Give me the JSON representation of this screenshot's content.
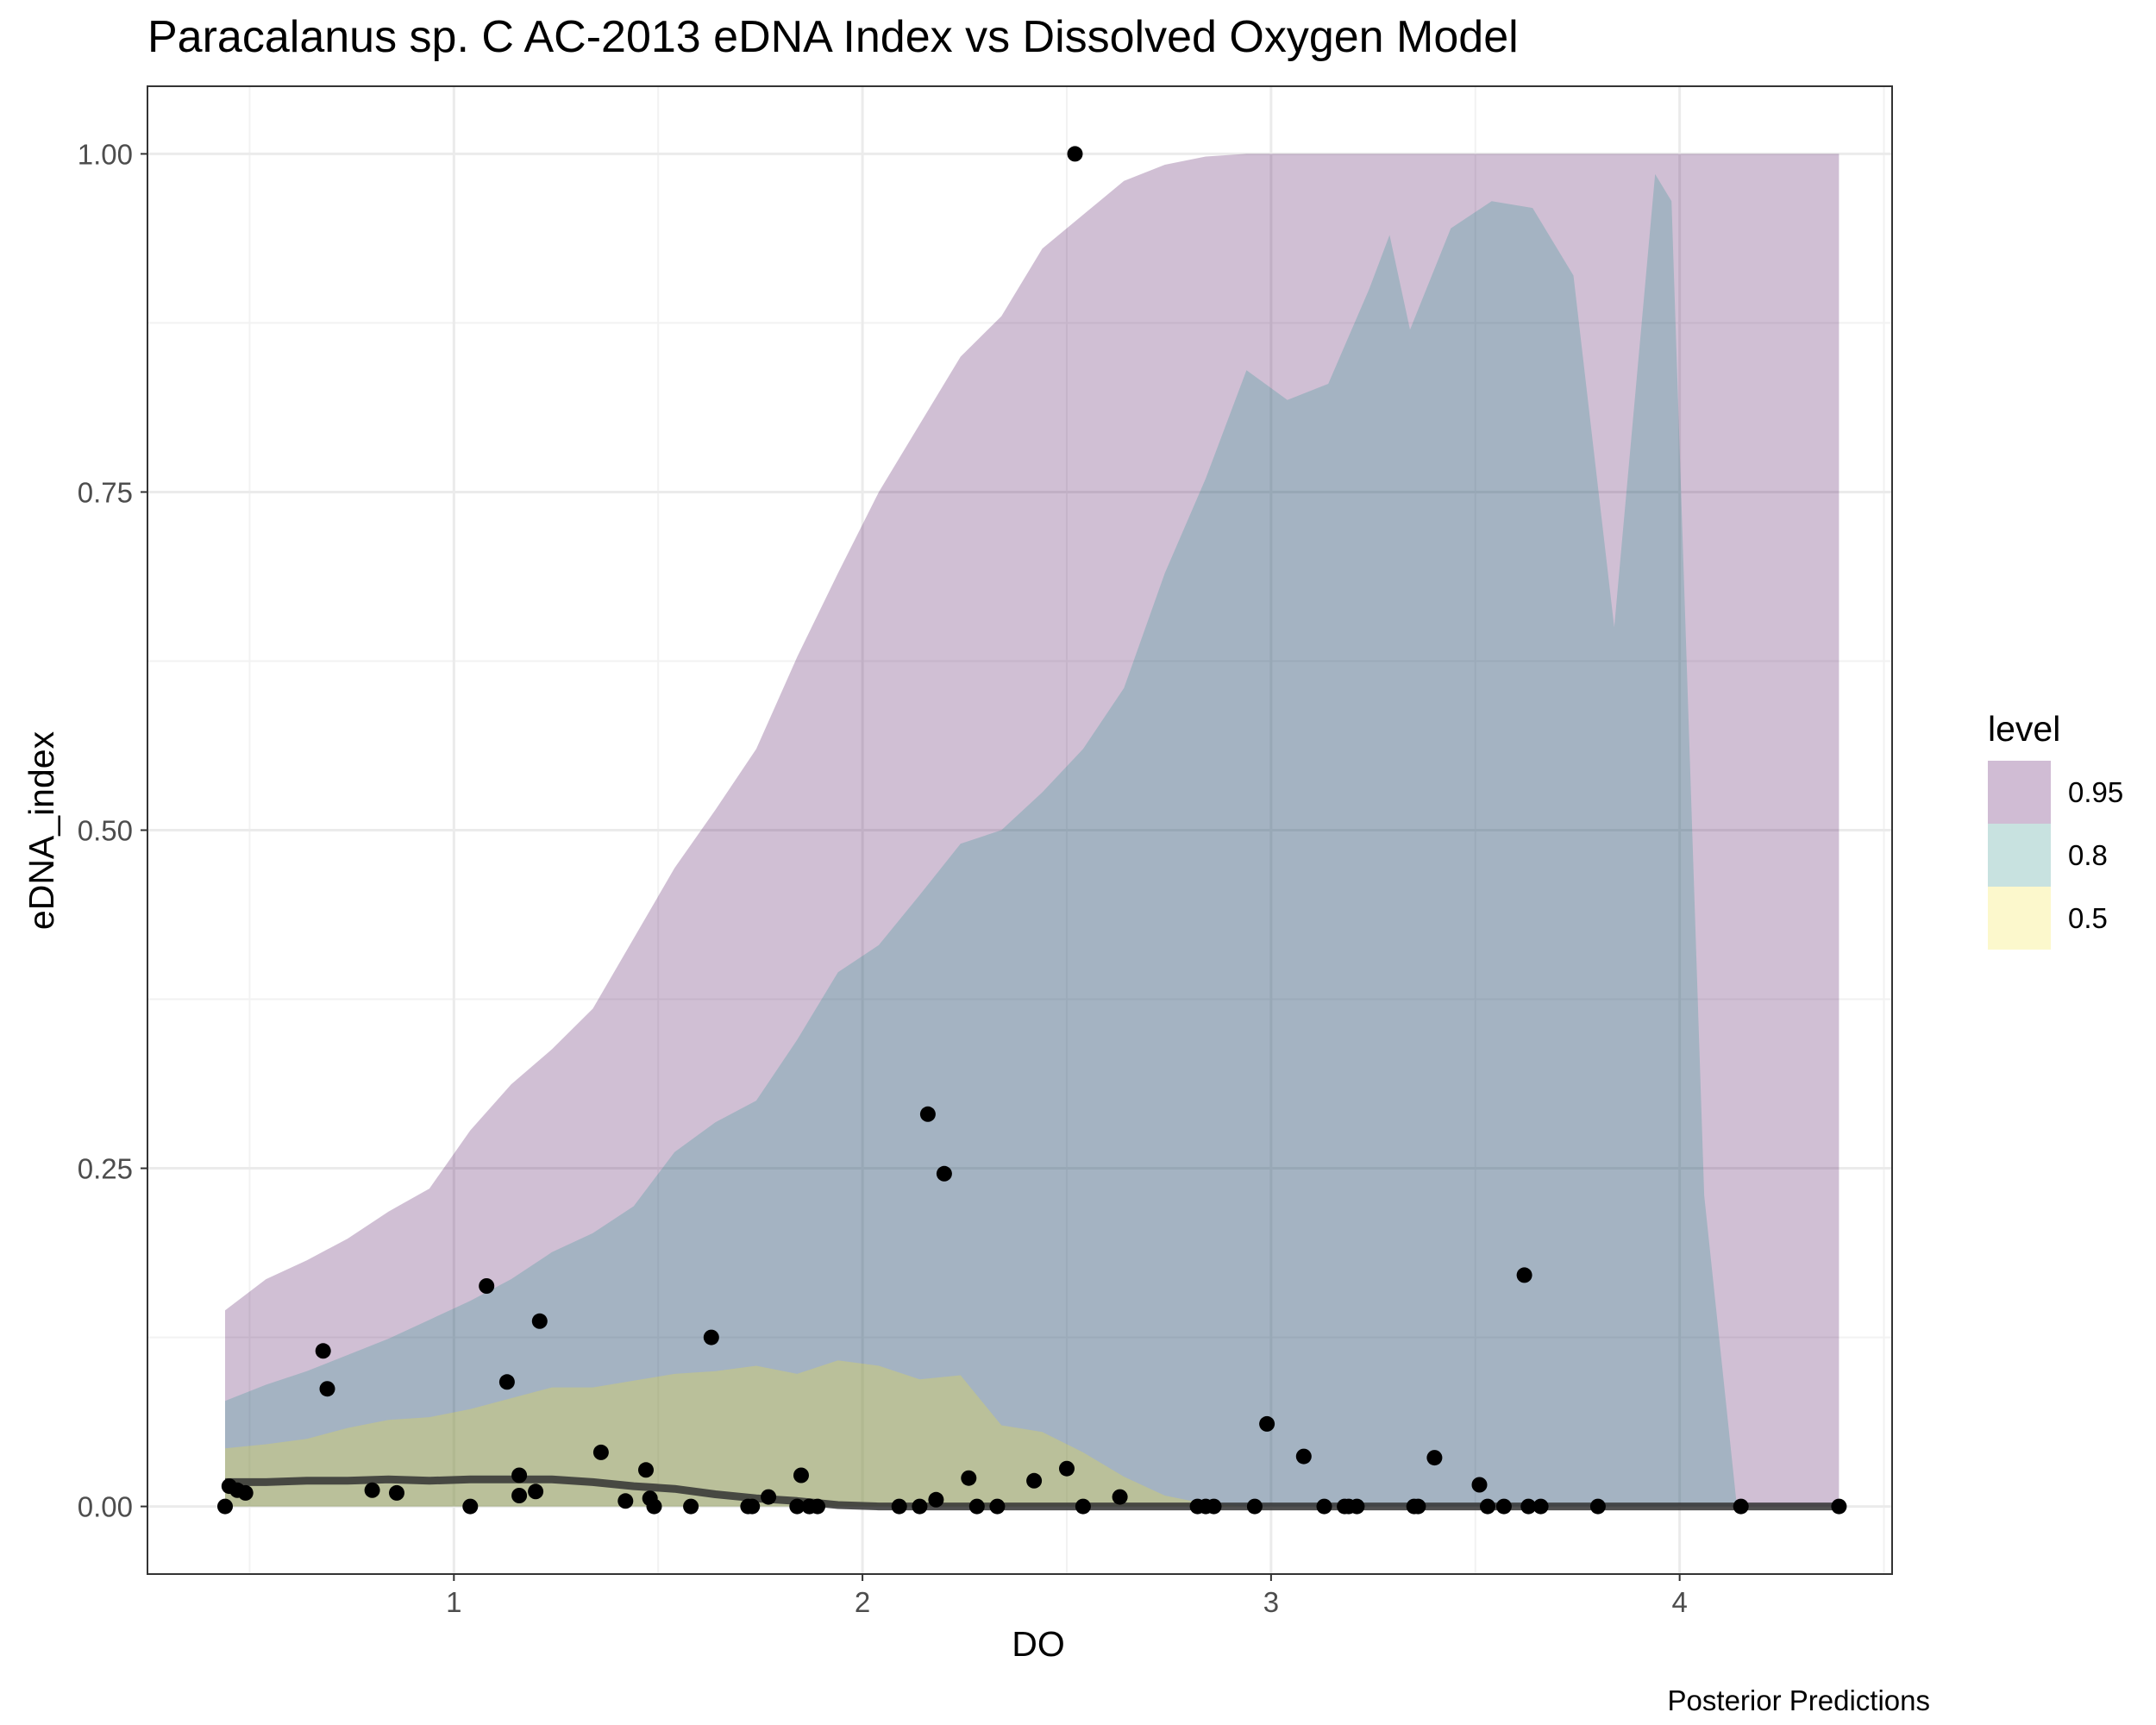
{
  "chart_data": {
    "type": "area",
    "title": "Paracalanus sp. C AC-2013 eDNA Index vs Dissolved Oxygen Model",
    "xlabel": "DO",
    "ylabel": "eDNA_index",
    "caption": "Posterior Predictions",
    "xlim": [
      0.25,
      4.52
    ],
    "ylim": [
      -0.05,
      1.05
    ],
    "x_ticks": [
      {
        "value": 1,
        "label": "1"
      },
      {
        "value": 2,
        "label": "2"
      },
      {
        "value": 3,
        "label": "3"
      },
      {
        "value": 4,
        "label": "4"
      }
    ],
    "y_ticks": [
      {
        "value": 0,
        "label": "0.00"
      },
      {
        "value": 0.25,
        "label": "0.25"
      },
      {
        "value": 0.5,
        "label": "0.50"
      },
      {
        "value": 0.75,
        "label": "0.75"
      },
      {
        "value": 1.0,
        "label": "1.00"
      }
    ],
    "grid": true,
    "legend": {
      "title": "level",
      "placement": "right",
      "items": [
        {
          "label": "0.95",
          "color": "#d0bcd4"
        },
        {
          "label": "0.8",
          "color": "#c8e2e0"
        },
        {
          "label": "0.5",
          "color": "#fcf8cc"
        }
      ]
    },
    "colors": {
      "band_95": "#440154",
      "band_80": "#21908c",
      "band_50": "#fde725",
      "median_line": "#333333",
      "points": "#000000"
    },
    "bands": [
      {
        "level": "0.95",
        "x": [
          0.44,
          0.54,
          0.64,
          0.74,
          0.84,
          0.94,
          1.04,
          1.14,
          1.24,
          1.34,
          1.44,
          1.54,
          1.64,
          1.74,
          1.84,
          1.94,
          2.04,
          2.14,
          2.24,
          2.34,
          2.44,
          2.54,
          2.64,
          2.74,
          2.84,
          2.94,
          3.04,
          3.14,
          3.24,
          3.34,
          3.44,
          3.54,
          3.64,
          3.74,
          3.84,
          3.94,
          4.04,
          4.14,
          4.24,
          4.34,
          4.39
        ],
        "upper": [
          0.145,
          0.168,
          0.182,
          0.198,
          0.218,
          0.235,
          0.278,
          0.312,
          0.338,
          0.368,
          0.42,
          0.472,
          0.515,
          0.56,
          0.628,
          0.69,
          0.75,
          0.8,
          0.85,
          0.88,
          0.93,
          0.955,
          0.98,
          0.992,
          0.998,
          1.0,
          1.0,
          1.0,
          1.0,
          1.0,
          1.0,
          1.0,
          1.0,
          1.0,
          1.0,
          1.0,
          1.0,
          1.0,
          1.0,
          1.0,
          1.0
        ],
        "lower": [
          0.0,
          0.0,
          0.0,
          0.0,
          0.0,
          0.0,
          0.0,
          0.0,
          0.0,
          0.0,
          0.0,
          0.0,
          0.0,
          0.0,
          0.0,
          0.0,
          0.0,
          0.0,
          0.0,
          0.0,
          0.0,
          0.0,
          0.0,
          0.0,
          0.0,
          0.0,
          0.0,
          0.0,
          0.0,
          0.0,
          0.0,
          0.0,
          0.0,
          0.0,
          0.0,
          0.0,
          0.0,
          0.0,
          0.0,
          0.0,
          0.0
        ]
      },
      {
        "level": "0.8",
        "x": [
          0.44,
          0.54,
          0.64,
          0.74,
          0.84,
          0.94,
          1.04,
          1.14,
          1.24,
          1.34,
          1.44,
          1.54,
          1.64,
          1.74,
          1.84,
          1.94,
          2.04,
          2.14,
          2.24,
          2.34,
          2.44,
          2.54,
          2.64,
          2.74,
          2.84,
          2.94,
          3.04,
          3.14,
          3.24,
          3.29,
          3.34,
          3.44,
          3.54,
          3.64,
          3.74,
          3.84,
          3.94,
          3.98,
          4.06,
          4.14
        ],
        "upper": [
          0.078,
          0.09,
          0.1,
          0.112,
          0.124,
          0.138,
          0.152,
          0.168,
          0.188,
          0.202,
          0.222,
          0.262,
          0.284,
          0.3,
          0.345,
          0.395,
          0.415,
          0.452,
          0.49,
          0.5,
          0.528,
          0.56,
          0.605,
          0.69,
          0.76,
          0.84,
          0.818,
          0.83,
          0.9,
          0.94,
          0.87,
          0.945,
          0.965,
          0.96,
          0.91,
          0.65,
          0.985,
          0.965,
          0.23,
          0.0
        ],
        "lower": [
          0.0,
          0.0,
          0.0,
          0.0,
          0.0,
          0.0,
          0.0,
          0.0,
          0.0,
          0.0,
          0.0,
          0.0,
          0.0,
          0.0,
          0.0,
          0.0,
          0.0,
          0.0,
          0.0,
          0.0,
          0.0,
          0.0,
          0.0,
          0.0,
          0.0,
          0.0,
          0.0,
          0.0,
          0.0,
          0.0,
          0.0,
          0.0,
          0.0,
          0.0,
          0.0,
          0.0,
          0.0,
          0.0,
          0.0,
          0.0
        ]
      },
      {
        "level": "0.5",
        "x": [
          0.44,
          0.54,
          0.64,
          0.74,
          0.84,
          0.94,
          1.04,
          1.14,
          1.24,
          1.34,
          1.44,
          1.54,
          1.64,
          1.74,
          1.84,
          1.94,
          2.04,
          2.14,
          2.24,
          2.34,
          2.44,
          2.54,
          2.64,
          2.74,
          2.84,
          2.94
        ],
        "upper": [
          0.043,
          0.046,
          0.05,
          0.058,
          0.064,
          0.066,
          0.072,
          0.08,
          0.088,
          0.088,
          0.093,
          0.098,
          0.1,
          0.104,
          0.098,
          0.108,
          0.104,
          0.094,
          0.097,
          0.06,
          0.055,
          0.04,
          0.022,
          0.008,
          0.002,
          0.0
        ],
        "lower": [
          0.0,
          0.0,
          0.0,
          0.0,
          0.0,
          0.0,
          0.0,
          0.0,
          0.0,
          0.0,
          0.0,
          0.0,
          0.0,
          0.0,
          0.0,
          0.0,
          0.0,
          0.0,
          0.0,
          0.0,
          0.0,
          0.0,
          0.0,
          0.0,
          0.0,
          0.0
        ]
      }
    ],
    "median": {
      "x": [
        0.44,
        0.54,
        0.64,
        0.74,
        0.84,
        0.94,
        1.04,
        1.14,
        1.24,
        1.34,
        1.44,
        1.54,
        1.64,
        1.74,
        1.84,
        1.94,
        2.04,
        2.5,
        3.0,
        3.5,
        4.0,
        4.39
      ],
      "y": [
        0.018,
        0.018,
        0.019,
        0.019,
        0.02,
        0.019,
        0.02,
        0.02,
        0.02,
        0.018,
        0.015,
        0.013,
        0.009,
        0.006,
        0.004,
        0.001,
        0.0,
        0.0,
        0.0,
        0.0,
        0.0,
        0.0
      ]
    },
    "points": {
      "x": [
        0.44,
        0.45,
        0.47,
        0.49,
        0.68,
        0.69,
        0.8,
        0.86,
        1.04,
        1.08,
        1.13,
        1.16,
        1.16,
        1.21,
        1.2,
        1.36,
        1.42,
        1.47,
        1.48,
        1.49,
        1.58,
        1.63,
        1.72,
        1.73,
        1.77,
        1.84,
        1.85,
        1.87,
        1.87,
        1.89,
        2.09,
        2.14,
        2.16,
        2.18,
        2.2,
        2.26,
        2.28,
        2.33,
        2.42,
        2.5,
        2.52,
        2.54,
        2.63,
        2.82,
        2.84,
        2.86,
        2.96,
        2.99,
        3.08,
        3.13,
        3.18,
        3.19,
        3.21,
        3.35,
        3.36,
        3.4,
        3.51,
        3.53,
        3.57,
        3.62,
        3.63,
        3.66,
        3.8,
        4.15,
        4.39
      ],
      "y": [
        0.0,
        0.015,
        0.012,
        0.01,
        0.115,
        0.087,
        0.012,
        0.01,
        0.0,
        0.163,
        0.092,
        0.023,
        0.008,
        0.137,
        0.011,
        0.04,
        0.004,
        0.027,
        0.006,
        0.0,
        0.0,
        0.125,
        0.0,
        0.0,
        0.007,
        0.0,
        0.023,
        0.0,
        0.0,
        0.0,
        0.0,
        0.0,
        0.29,
        0.005,
        0.246,
        0.021,
        0.0,
        0.0,
        0.019,
        0.028,
        1.0,
        0.0,
        0.007,
        0.0,
        0.0,
        0.0,
        0.0,
        0.061,
        0.037,
        0.0,
        0.0,
        0.0,
        0.0,
        0.0,
        0.0,
        0.036,
        0.016,
        0.0,
        0.0,
        0.171,
        0.0,
        0.0,
        0.0,
        0.0,
        0.0
      ]
    }
  }
}
